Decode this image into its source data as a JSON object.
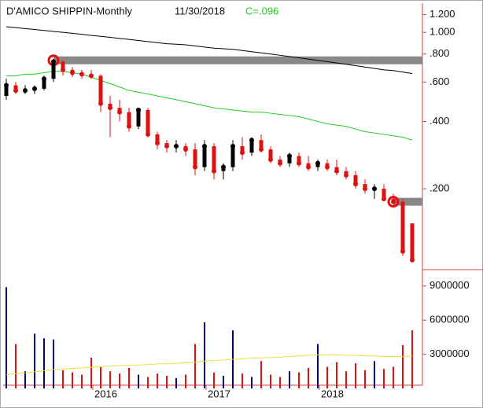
{
  "chart_data": {
    "type": "candlestick",
    "title": "D'AMICO SHIPPIN-Monthly",
    "date_label": "11/30/2018",
    "close_label": "C=.096",
    "categories": [
      null,
      null,
      null,
      null,
      null,
      null,
      null,
      null,
      null,
      "2016",
      null,
      null,
      null,
      null,
      null,
      null,
      null,
      null,
      null,
      null,
      null,
      "2017",
      null,
      null,
      null,
      null,
      null,
      null,
      null,
      null,
      null,
      null,
      null,
      "2018",
      null,
      null,
      null,
      null,
      null,
      null,
      null,
      null,
      null,
      null
    ],
    "open": [
      0.52,
      0.58,
      0.55,
      0.55,
      0.56,
      0.62,
      0.74,
      0.68,
      0.66,
      0.65,
      0.64,
      0.48,
      0.46,
      0.44,
      0.38,
      0.45,
      0.35,
      0.32,
      0.31,
      0.31,
      0.3,
      0.25,
      0.31,
      0.24,
      0.25,
      0.31,
      0.29,
      0.33,
      0.3,
      0.27,
      0.26,
      0.28,
      0.26,
      0.25,
      0.26,
      0.25,
      0.24,
      0.23,
      0.21,
      0.2,
      0.2,
      0.18,
      0.175,
      0.14
    ],
    "high": [
      0.62,
      0.6,
      0.58,
      0.58,
      0.64,
      0.76,
      0.75,
      0.7,
      0.68,
      0.68,
      0.65,
      0.52,
      0.5,
      0.46,
      0.46,
      0.46,
      0.36,
      0.33,
      0.33,
      0.32,
      0.32,
      0.33,
      0.32,
      0.26,
      0.33,
      0.34,
      0.34,
      0.35,
      0.31,
      0.28,
      0.29,
      0.29,
      0.28,
      0.27,
      0.27,
      0.27,
      0.25,
      0.24,
      0.22,
      0.21,
      0.21,
      0.19,
      0.18,
      0.14
    ],
    "low": [
      0.5,
      0.53,
      0.53,
      0.53,
      0.55,
      0.6,
      0.64,
      0.63,
      0.62,
      0.62,
      0.44,
      0.34,
      0.4,
      0.36,
      0.37,
      0.34,
      0.3,
      0.29,
      0.29,
      0.28,
      0.23,
      0.24,
      0.22,
      0.22,
      0.24,
      0.27,
      0.28,
      0.29,
      0.26,
      0.25,
      0.25,
      0.25,
      0.24,
      0.24,
      0.24,
      0.23,
      0.22,
      0.2,
      0.19,
      0.18,
      0.18,
      0.17,
      0.1,
      0.095
    ],
    "close": [
      0.58,
      0.55,
      0.55,
      0.56,
      0.62,
      0.74,
      0.68,
      0.66,
      0.65,
      0.64,
      0.48,
      0.46,
      0.44,
      0.38,
      0.45,
      0.35,
      0.32,
      0.31,
      0.31,
      0.3,
      0.25,
      0.31,
      0.24,
      0.25,
      0.31,
      0.29,
      0.33,
      0.3,
      0.27,
      0.26,
      0.28,
      0.26,
      0.25,
      0.26,
      0.25,
      0.24,
      0.23,
      0.21,
      0.2,
      0.2,
      0.18,
      0.175,
      0.105,
      0.096
    ],
    "up_color": "#000000",
    "down_color": "#e01010",
    "averages": [
      {
        "color": "#000000",
        "values": [
          1.06,
          1.05,
          1.04,
          1.03,
          1.02,
          1.01,
          1.0,
          0.99,
          0.98,
          0.97,
          0.96,
          0.95,
          0.94,
          0.93,
          0.92,
          0.91,
          0.9,
          0.89,
          0.885,
          0.88,
          0.87,
          0.86,
          0.85,
          0.845,
          0.84,
          0.83,
          0.82,
          0.81,
          0.8,
          0.79,
          0.78,
          0.77,
          0.76,
          0.75,
          0.74,
          0.73,
          0.72,
          0.71,
          0.7,
          0.69,
          0.68,
          0.675,
          0.665,
          0.655
        ]
      },
      {
        "color": "#22cc22",
        "values": [
          0.64,
          0.64,
          0.65,
          0.65,
          0.66,
          0.67,
          0.67,
          0.66,
          0.65,
          0.63,
          0.61,
          0.59,
          0.57,
          0.55,
          0.54,
          0.53,
          0.52,
          0.51,
          0.5,
          0.49,
          0.48,
          0.47,
          0.46,
          0.455,
          0.45,
          0.445,
          0.44,
          0.44,
          0.435,
          0.43,
          0.425,
          0.42,
          0.41,
          0.4,
          0.39,
          0.385,
          0.38,
          0.37,
          0.36,
          0.355,
          0.35,
          0.345,
          0.34,
          0.33
        ]
      }
    ],
    "levels": [
      {
        "value": 0.75,
        "start": 5,
        "color": "#888888"
      },
      {
        "value": 0.175,
        "start": 41,
        "color": "#888888"
      }
    ],
    "log_scale": true,
    "ylim": [
      0.087,
      1.34
    ],
    "yticks": [
      {
        "value": 1.2,
        "label": "1.200"
      },
      {
        "value": 1.0,
        "label": "1.000"
      },
      {
        "value": 0.8,
        "label": ".800"
      },
      {
        "value": 0.6,
        "label": ".600"
      },
      {
        "value": 0.4,
        "label": ".400"
      },
      {
        "value": 0.2,
        "label": ".200"
      }
    ],
    "volume": [
      8900000,
      3900000,
      1500000,
      4800000,
      4400000,
      4300000,
      1600000,
      1400000,
      1200000,
      2700000,
      1900000,
      1500000,
      1300000,
      1800000,
      1200000,
      1000000,
      1300000,
      1100000,
      900000,
      1200000,
      3900000,
      5800000,
      1400000,
      1100000,
      5100000,
      1300000,
      1000000,
      2400000,
      1200000,
      1000000,
      1500000,
      1400000,
      1800000,
      3900000,
      1900000,
      2300000,
      1500000,
      2200000,
      1600000,
      2400000,
      1700000,
      1900000,
      3800000,
      5100000
    ],
    "volume_average": {
      "color": "#e8e040",
      "values": [
        1200000,
        1300000,
        1350000,
        1450000,
        1550000,
        1650000,
        1700000,
        1750000,
        1800000,
        1850000,
        1900000,
        1950000,
        2000000,
        2050000,
        2050000,
        2100000,
        2150000,
        2150000,
        2200000,
        2250000,
        2300000,
        2400000,
        2450000,
        2500000,
        2550000,
        2600000,
        2650000,
        2700000,
        2700000,
        2750000,
        2800000,
        2850000,
        2900000,
        2950000,
        2950000,
        2950000,
        2900000,
        2900000,
        2850000,
        2850000,
        2800000,
        2800000,
        2800000,
        2850000
      ]
    },
    "volume_ylim": [
      0,
      10300000
    ],
    "volume_yticks": [
      9000000,
      6000000,
      3000000
    ]
  }
}
